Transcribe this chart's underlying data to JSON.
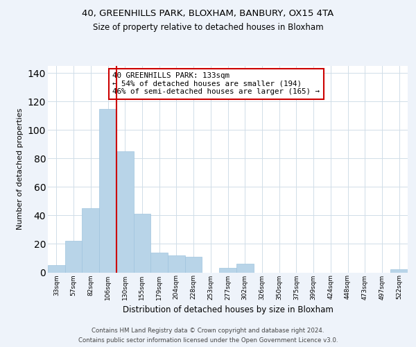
{
  "title1": "40, GREENHILLS PARK, BLOXHAM, BANBURY, OX15 4TA",
  "title2": "Size of property relative to detached houses in Bloxham",
  "xlabel": "Distribution of detached houses by size in Bloxham",
  "ylabel": "Number of detached properties",
  "bar_color": "#b8d4e8",
  "bar_edgecolor": "#9fc4de",
  "xlabels": [
    "33sqm",
    "57sqm",
    "82sqm",
    "106sqm",
    "130sqm",
    "155sqm",
    "179sqm",
    "204sqm",
    "228sqm",
    "253sqm",
    "277sqm",
    "302sqm",
    "326sqm",
    "350sqm",
    "375sqm",
    "399sqm",
    "424sqm",
    "448sqm",
    "473sqm",
    "497sqm",
    "522sqm"
  ],
  "bar_heights": [
    5,
    22,
    45,
    115,
    85,
    41,
    14,
    12,
    11,
    0,
    3,
    6,
    0,
    0,
    0,
    0,
    0,
    0,
    0,
    0,
    2
  ],
  "ylim": [
    0,
    145
  ],
  "yticks": [
    0,
    20,
    40,
    60,
    80,
    100,
    120,
    140
  ],
  "red_line_x": 3.5,
  "annotation_box_text": "40 GREENHILLS PARK: 133sqm\n← 54% of detached houses are smaller (194)\n46% of semi-detached houses are larger (165) →",
  "footer1": "Contains HM Land Registry data © Crown copyright and database right 2024.",
  "footer2": "Contains public sector information licensed under the Open Government Licence v3.0.",
  "background_color": "#eef3fa",
  "plot_background": "#ffffff",
  "annotation_box_color": "#ffffff",
  "annotation_box_edgecolor": "#cc0000",
  "red_line_color": "#cc0000",
  "grid_color": "#d0dde8"
}
